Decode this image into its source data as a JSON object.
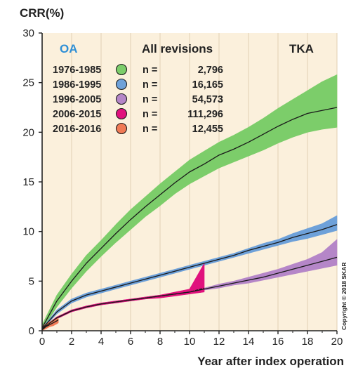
{
  "chart_data": {
    "type": "line",
    "ylabel": "CRR(%)",
    "xlabel": "Year after index operation",
    "xlim": [
      0,
      20
    ],
    "ylim": [
      0,
      30
    ],
    "x_ticks": [
      0,
      2,
      4,
      6,
      8,
      10,
      12,
      14,
      16,
      18,
      20
    ],
    "y_ticks": [
      0,
      5,
      10,
      15,
      20,
      25,
      30
    ],
    "grid": "vertical",
    "legend_placement": "top-left",
    "header_left": "OA",
    "header_center": "All revisions",
    "header_right": "TKA",
    "copyright": "Copyright © 2018 SKAR",
    "n_prefix": "n =",
    "colors": {
      "background": "#fbf0dc",
      "grid": "#e6d6ba",
      "oa_label": "#2e8fd6",
      "median_line": "#1a1a1a"
    },
    "series": [
      {
        "name": "1976-1985",
        "n": "2,796",
        "color": "#7ccd6a",
        "x": [
          0,
          1,
          2,
          3,
          4,
          5,
          6,
          7,
          8,
          9,
          10,
          11,
          12,
          13,
          14,
          15,
          16,
          17,
          18,
          19,
          20
        ],
        "y": [
          0.3,
          3.0,
          5.0,
          6.8,
          8.3,
          9.8,
          11.2,
          12.5,
          13.7,
          14.9,
          16.0,
          16.8,
          17.7,
          18.3,
          19.0,
          19.8,
          20.6,
          21.3,
          21.9,
          22.2,
          22.5
        ],
        "lower": [
          0.1,
          2.4,
          4.3,
          6.0,
          7.5,
          8.9,
          10.2,
          11.5,
          12.6,
          13.8,
          14.8,
          15.6,
          16.4,
          17.0,
          17.6,
          18.2,
          18.9,
          19.5,
          20.0,
          20.3,
          20.5
        ],
        "upper": [
          0.6,
          3.6,
          5.7,
          7.6,
          9.1,
          10.7,
          12.2,
          13.5,
          14.8,
          16.0,
          17.2,
          18.1,
          19.0,
          19.7,
          20.5,
          21.4,
          22.4,
          23.3,
          24.2,
          25.1,
          25.8
        ]
      },
      {
        "name": "1986-1995",
        "n": "16,165",
        "color": "#6ea1d9",
        "x": [
          0,
          1,
          2,
          3,
          4,
          5,
          6,
          7,
          8,
          9,
          10,
          11,
          12,
          13,
          14,
          15,
          16,
          17,
          18,
          19,
          20
        ],
        "y": [
          0.2,
          1.9,
          3.0,
          3.6,
          4.0,
          4.4,
          4.8,
          5.2,
          5.6,
          6.0,
          6.4,
          6.8,
          7.2,
          7.6,
          8.1,
          8.5,
          8.9,
          9.4,
          9.8,
          10.2,
          10.7
        ],
        "lower": [
          0.1,
          1.7,
          2.8,
          3.4,
          3.8,
          4.2,
          4.6,
          5.0,
          5.4,
          5.8,
          6.2,
          6.6,
          7.0,
          7.4,
          7.8,
          8.2,
          8.6,
          9.0,
          9.3,
          9.7,
          10.1
        ],
        "upper": [
          0.3,
          2.1,
          3.2,
          3.8,
          4.2,
          4.6,
          5.0,
          5.4,
          5.8,
          6.2,
          6.6,
          7.0,
          7.4,
          7.8,
          8.3,
          8.8,
          9.2,
          9.8,
          10.3,
          10.8,
          11.6
        ]
      },
      {
        "name": "1996-2005",
        "n": "54,573",
        "color": "#b586c8",
        "x": [
          0,
          1,
          2,
          3,
          4,
          5,
          6,
          7,
          8,
          9,
          10,
          11,
          12,
          13,
          14,
          15,
          16,
          17,
          18,
          19,
          20
        ],
        "y": [
          0.2,
          1.3,
          2.0,
          2.4,
          2.7,
          2.9,
          3.1,
          3.3,
          3.5,
          3.7,
          3.9,
          4.2,
          4.5,
          4.8,
          5.1,
          5.4,
          5.8,
          6.2,
          6.6,
          7.0,
          7.4
        ],
        "lower": [
          0.1,
          1.2,
          1.9,
          2.3,
          2.6,
          2.8,
          3.0,
          3.2,
          3.4,
          3.6,
          3.8,
          4.1,
          4.3,
          4.6,
          4.8,
          5.1,
          5.4,
          5.7,
          6.0,
          6.3,
          6.6
        ],
        "upper": [
          0.3,
          1.4,
          2.1,
          2.5,
          2.8,
          3.0,
          3.2,
          3.4,
          3.6,
          3.8,
          4.0,
          4.3,
          4.7,
          5.0,
          5.4,
          5.8,
          6.2,
          6.7,
          7.2,
          7.9,
          9.2
        ]
      },
      {
        "name": "2006-2015",
        "n": "111,296",
        "color": "#e0117d",
        "x": [
          0,
          1,
          2,
          3,
          4,
          5,
          6,
          7,
          8,
          9,
          10,
          11
        ],
        "y": [
          0.2,
          1.3,
          2.0,
          2.4,
          2.7,
          2.9,
          3.1,
          3.3,
          3.5,
          3.7,
          3.9,
          4.3
        ],
        "lower": [
          0.1,
          1.2,
          1.9,
          2.3,
          2.6,
          2.8,
          3.0,
          3.2,
          3.3,
          3.5,
          3.7,
          3.9
        ],
        "upper": [
          0.3,
          1.4,
          2.1,
          2.5,
          2.8,
          3.0,
          3.2,
          3.4,
          3.6,
          3.9,
          4.2,
          6.8
        ]
      },
      {
        "name": "2016-2016",
        "n": "12,455",
        "color": "#f07a55",
        "x": [
          0,
          0.25,
          0.5,
          0.75,
          1.0,
          1.1
        ],
        "y": [
          0.1,
          0.4,
          0.6,
          0.8,
          1.0,
          1.1
        ],
        "lower": [
          0.0,
          0.2,
          0.4,
          0.5,
          0.7,
          0.8
        ],
        "upper": [
          0.3,
          0.7,
          0.9,
          1.1,
          1.3,
          1.4
        ]
      }
    ]
  }
}
